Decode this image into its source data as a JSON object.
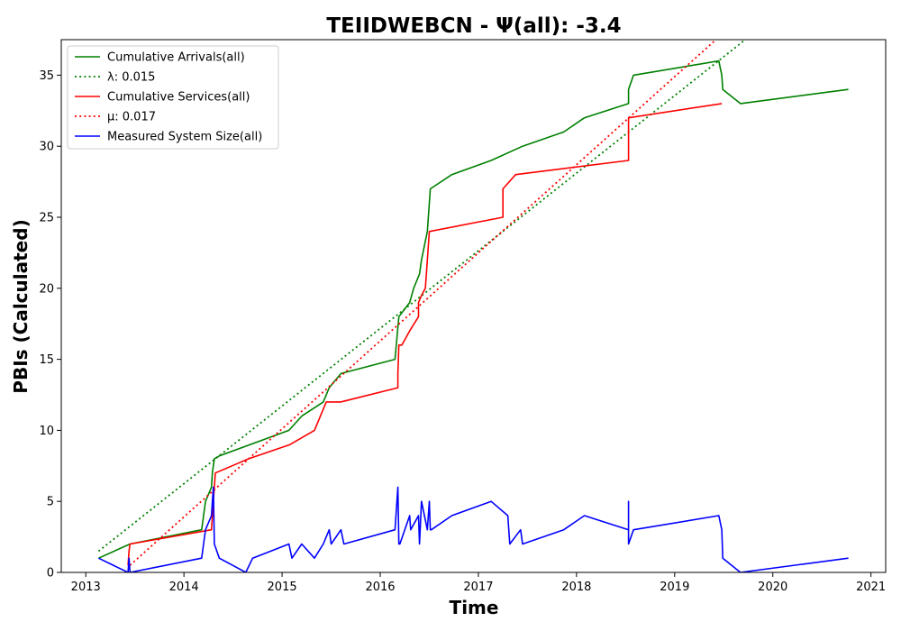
{
  "chart_data": {
    "type": "line",
    "title": "TEIIDWEBCN -  Ψ(all): -3.4",
    "xlabel": "Time",
    "ylabel": "PBIs (Calculated)",
    "xlim": [
      2012.75,
      2021.15
    ],
    "ylim": [
      0,
      37.5
    ],
    "x_ticks": [
      2013,
      2014,
      2015,
      2016,
      2017,
      2018,
      2019,
      2020,
      2021
    ],
    "y_ticks": [
      0,
      5,
      10,
      15,
      20,
      25,
      30,
      35
    ],
    "grid": false,
    "legend_position": "top-left",
    "series": [
      {
        "name": "Cumulative Arrivals(all)",
        "color": "#008000",
        "style": "solid",
        "x": [
          2013.13,
          2013.45,
          2014.18,
          2014.22,
          2014.28,
          2014.29,
          2014.31,
          2014.36,
          2015.07,
          2015.2,
          2015.42,
          2015.48,
          2015.6,
          2016.15,
          2016.19,
          2016.3,
          2016.34,
          2016.4,
          2016.42,
          2016.48,
          2016.51,
          2016.73,
          2017.13,
          2017.45,
          2017.87,
          2018.08,
          2018.53,
          2018.53,
          2018.58,
          2019.45,
          2019.48,
          2019.49,
          2019.67,
          2020.77
        ],
        "y": [
          1,
          2,
          3,
          5,
          6,
          7,
          8,
          8.2,
          10,
          11,
          12,
          13,
          14,
          15,
          18,
          19,
          20,
          21,
          22,
          24,
          27,
          28,
          29,
          30,
          31,
          32,
          33,
          34,
          35,
          36,
          35,
          34,
          33,
          34
        ]
      },
      {
        "name": "λ: 0.015",
        "color": "#008000",
        "style": "dotted",
        "x": [
          2013.13,
          2019.72
        ],
        "y": [
          1.5,
          37.5
        ]
      },
      {
        "name": "Cumulative Services(all)",
        "color": "#ff0000",
        "style": "solid",
        "x": [
          2013.43,
          2013.44,
          2013.45,
          2014.28,
          2014.3,
          2014.32,
          2014.66,
          2015.08,
          2015.33,
          2015.45,
          2015.6,
          2016.18,
          2016.18,
          2016.19,
          2016.22,
          2016.3,
          2016.39,
          2016.39,
          2016.42,
          2016.46,
          2016.48,
          2016.5,
          2017.25,
          2017.25,
          2017.38,
          2018.53,
          2018.53,
          2019.48
        ],
        "y": [
          0.5,
          1.5,
          2,
          3,
          5,
          7,
          8,
          9,
          10,
          12,
          12,
          13,
          14,
          16,
          16,
          17,
          18,
          19,
          19.5,
          20,
          22,
          24,
          25,
          27,
          28,
          29,
          32,
          33
        ]
      },
      {
        "name": "μ: 0.017",
        "color": "#ff0000",
        "style": "dotted",
        "x": [
          2013.45,
          2019.42
        ],
        "y": [
          0.5,
          37.5
        ]
      },
      {
        "name": "Measured System Size(all)",
        "color": "#0000ff",
        "style": "solid",
        "x": [
          2013.13,
          2013.43,
          2013.44,
          2013.45,
          2014.18,
          2014.22,
          2014.28,
          2014.3,
          2014.31,
          2014.36,
          2014.63,
          2014.7,
          2015.07,
          2015.1,
          2015.2,
          2015.33,
          2015.42,
          2015.48,
          2015.5,
          2015.6,
          2015.63,
          2016.15,
          2016.18,
          2016.19,
          2016.2,
          2016.3,
          2016.31,
          2016.39,
          2016.4,
          2016.42,
          2016.48,
          2016.5,
          2016.51,
          2016.52,
          2016.73,
          2017.13,
          2017.3,
          2017.32,
          2017.43,
          2017.45,
          2017.87,
          2018.08,
          2018.53,
          2018.53,
          2018.53,
          2018.58,
          2019.45,
          2019.48,
          2019.49,
          2019.67,
          2020.77
        ],
        "y": [
          1,
          0,
          1,
          0,
          1,
          3,
          4,
          6,
          2,
          1,
          0,
          1,
          2,
          1,
          2,
          1,
          2,
          3,
          2,
          3,
          2,
          3,
          6,
          2,
          2,
          4,
          3,
          4,
          2,
          5,
          3,
          5,
          3,
          3,
          4,
          5,
          4,
          2,
          3,
          2,
          3,
          4,
          3,
          5,
          2,
          3,
          4,
          3,
          1,
          0,
          1
        ]
      }
    ]
  }
}
